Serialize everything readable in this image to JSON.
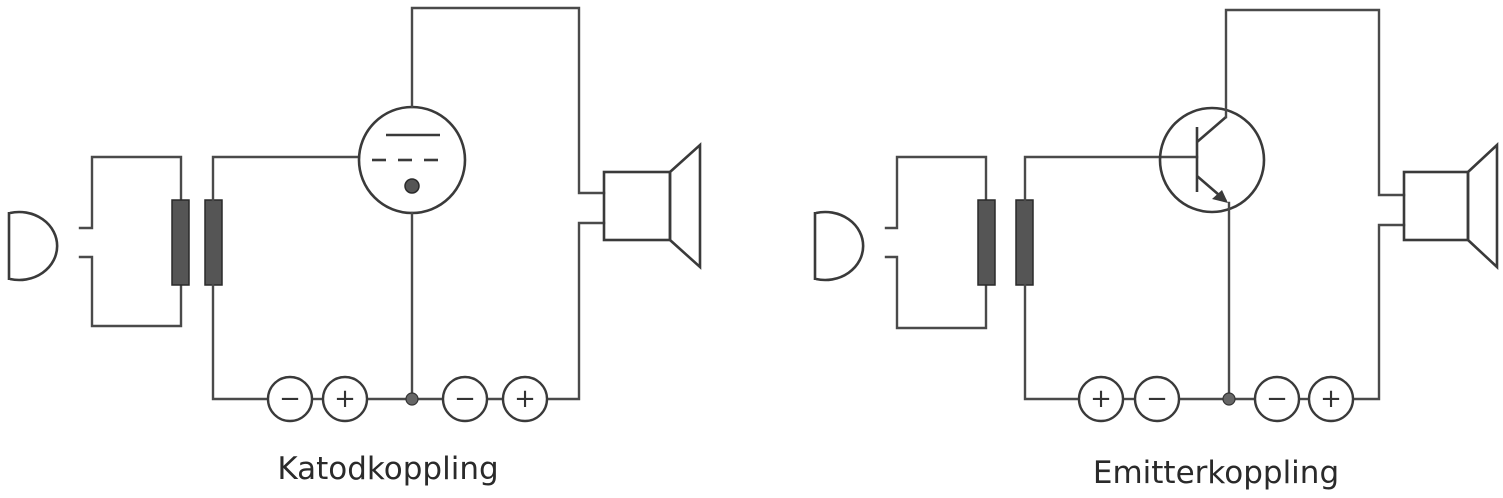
{
  "diagrams": [
    {
      "id": "cathode",
      "caption": "Katodkoppling",
      "device": "vacuum-tube",
      "battery_signs": [
        "−",
        "+",
        "−",
        "+"
      ]
    },
    {
      "id": "emitter",
      "caption": "Emitterkoppling",
      "device": "transistor",
      "battery_signs": [
        "+",
        "−",
        "−",
        "+"
      ]
    }
  ]
}
